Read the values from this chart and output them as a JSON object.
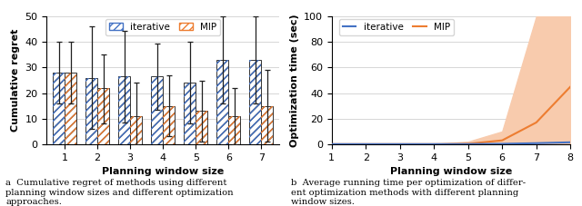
{
  "bar_categories": [
    1,
    2,
    3,
    4,
    5,
    6,
    7
  ],
  "iterative_means": [
    28,
    26,
    26.5,
    26.5,
    24,
    33,
    33
  ],
  "iterative_errors_lo": [
    12,
    20,
    18,
    13,
    16,
    17,
    17
  ],
  "iterative_errors_hi": [
    12,
    20,
    18,
    13,
    16,
    17,
    17
  ],
  "mip_means": [
    28,
    22,
    11,
    15,
    13,
    11,
    15
  ],
  "mip_errors_lo": [
    12,
    14,
    11,
    12,
    12,
    11,
    14
  ],
  "mip_errors_hi": [
    12,
    13,
    13,
    12,
    12,
    11,
    14
  ],
  "bar_ylim": [
    0,
    50
  ],
  "bar_yticks": [
    0,
    10,
    20,
    30,
    40,
    50
  ],
  "bar_ylabel": "Cumulative regret",
  "bar_xlabel": "Planning window size",
  "bar_caption": "a  Cumulative regret of methods using different\nplanning window sizes and different optimization\napproaches.",
  "iterative_color": "#4472C4",
  "mip_color": "#ED7D31",
  "line_x": [
    1,
    2,
    3,
    4,
    5,
    6,
    7,
    8
  ],
  "line_iterative_means": [
    0.05,
    0.05,
    0.05,
    0.05,
    0.1,
    0.3,
    0.8,
    1.5
  ],
  "line_iterative_lower": [
    0.0,
    0.0,
    0.0,
    0.0,
    0.0,
    0.0,
    0.0,
    0.0
  ],
  "line_iterative_upper": [
    0.1,
    0.1,
    0.1,
    0.1,
    0.2,
    0.6,
    1.5,
    3.0
  ],
  "line_mip_means": [
    0.05,
    0.05,
    0.05,
    0.05,
    0.3,
    3.0,
    17.0,
    45.0
  ],
  "line_mip_lower": [
    0.0,
    0.0,
    0.0,
    0.0,
    0.0,
    0.0,
    0.0,
    0.0
  ],
  "line_mip_upper": [
    0.1,
    0.1,
    0.1,
    0.1,
    2.0,
    10.0,
    100.0,
    100.0
  ],
  "line_ylim": [
    0,
    100
  ],
  "line_yticks": [
    0,
    20,
    40,
    60,
    80,
    100
  ],
  "line_ylabel": "Optimization time (sec)",
  "line_xlabel": "Planning window size",
  "line_caption": "b  Average running time per optimization of differ-\nent optimization methods with different planning\nwindow sizes.",
  "line_iterative_color": "#4472C4",
  "line_mip_color": "#ED7D31",
  "line_mip_fill_color": "#F8CBAD",
  "bg_color": "#FFFFFF",
  "grid_color": "#D0D0D0"
}
